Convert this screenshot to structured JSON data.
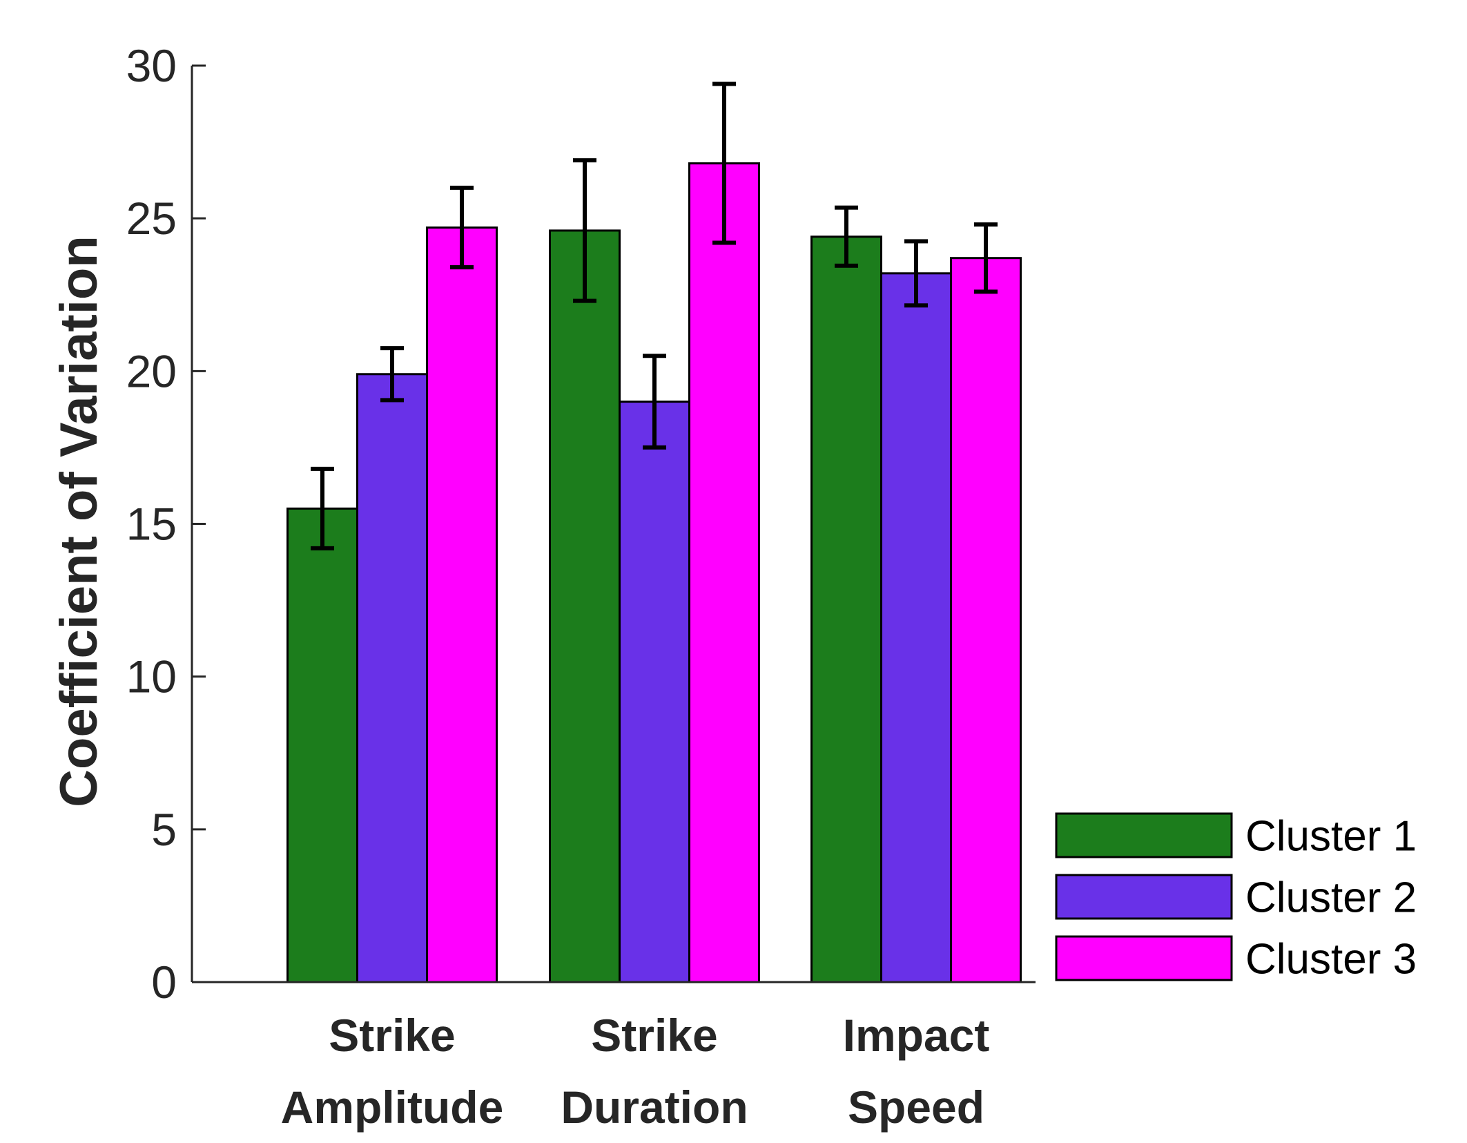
{
  "chart_data": {
    "type": "bar",
    "ylabel": "Coefficient of Variation",
    "ylim": [
      0,
      30
    ],
    "yticks": [
      0,
      5,
      10,
      15,
      20,
      25,
      30
    ],
    "categories": [
      [
        "Strike",
        "Amplitude"
      ],
      [
        "Strike",
        "Duration"
      ],
      [
        "Impact",
        "Speed"
      ]
    ],
    "series": [
      {
        "name": "Cluster 1",
        "color": "#1c7d1c",
        "values": [
          15.5,
          24.6,
          24.4
        ],
        "errors": [
          1.3,
          2.3,
          0.95
        ]
      },
      {
        "name": "Cluster 2",
        "color": "#6931e8",
        "values": [
          19.9,
          19.0,
          23.2
        ],
        "errors": [
          0.85,
          1.5,
          1.05
        ]
      },
      {
        "name": "Cluster 3",
        "color": "#ff00ff",
        "values": [
          24.7,
          26.8,
          23.7
        ],
        "errors": [
          1.3,
          2.6,
          1.1
        ]
      }
    ],
    "legend_position": "bottom-right, outside plot",
    "grid": false
  }
}
